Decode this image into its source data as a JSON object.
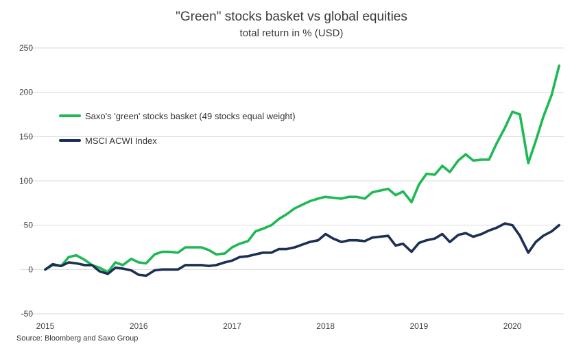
{
  "chart_data": {
    "type": "line",
    "title": "\"Green\" stocks basket vs global equities",
    "subtitle": "total return in % (USD)",
    "xlabel": "",
    "ylabel": "",
    "xlim": [
      2015.0,
      2020.55
    ],
    "ylim": [
      -50,
      250
    ],
    "y_ticks": [
      -50,
      0,
      50,
      100,
      150,
      200,
      250
    ],
    "x_ticks": [
      "2015",
      "2016",
      "2017",
      "2018",
      "2019",
      "2020"
    ],
    "x_tick_values": [
      2015,
      2016,
      2017,
      2018,
      2019,
      2020
    ],
    "grid": true,
    "legend_position": "left",
    "source": "Source: Bloomberg and Saxo Group",
    "series": [
      {
        "name": "Saxo's 'green' stocks basket (49 stocks equal weight)",
        "color": "#1db954",
        "x": [
          2015.0,
          2015.08,
          2015.17,
          2015.25,
          2015.33,
          2015.42,
          2015.5,
          2015.58,
          2015.67,
          2015.75,
          2015.83,
          2015.92,
          2016.0,
          2016.08,
          2016.17,
          2016.25,
          2016.33,
          2016.42,
          2016.5,
          2016.58,
          2016.67,
          2016.75,
          2016.83,
          2016.92,
          2017.0,
          2017.08,
          2017.17,
          2017.25,
          2017.33,
          2017.42,
          2017.5,
          2017.58,
          2017.67,
          2017.75,
          2017.83,
          2017.92,
          2018.0,
          2018.08,
          2018.17,
          2018.25,
          2018.33,
          2018.42,
          2018.5,
          2018.58,
          2018.67,
          2018.75,
          2018.83,
          2018.92,
          2019.0,
          2019.08,
          2019.17,
          2019.25,
          2019.33,
          2019.42,
          2019.5,
          2019.58,
          2019.67,
          2019.75,
          2019.83,
          2019.92,
          2020.0,
          2020.08,
          2020.17,
          2020.25,
          2020.33,
          2020.42,
          2020.5
        ],
        "values": [
          0,
          5,
          4,
          14,
          16,
          11,
          5,
          2,
          -3,
          8,
          5,
          12,
          8,
          7,
          17,
          20,
          20,
          19,
          25,
          25,
          25,
          22,
          17,
          18,
          25,
          29,
          32,
          43,
          46,
          50,
          57,
          62,
          69,
          73,
          77,
          80,
          82,
          81,
          80,
          82,
          82,
          80,
          87,
          89,
          91,
          84,
          88,
          76,
          96,
          108,
          107,
          117,
          110,
          123,
          130,
          123,
          124,
          124,
          142,
          160,
          178,
          175,
          120,
          145,
          172,
          197,
          230
        ]
      },
      {
        "name": "MSCI ACWI Index",
        "color": "#1c2f55",
        "x": [
          2015.0,
          2015.08,
          2015.17,
          2015.25,
          2015.33,
          2015.42,
          2015.5,
          2015.58,
          2015.67,
          2015.75,
          2015.83,
          2015.92,
          2016.0,
          2016.08,
          2016.17,
          2016.25,
          2016.33,
          2016.42,
          2016.5,
          2016.58,
          2016.67,
          2016.75,
          2016.83,
          2016.92,
          2017.0,
          2017.08,
          2017.17,
          2017.25,
          2017.33,
          2017.42,
          2017.5,
          2017.58,
          2017.67,
          2017.75,
          2017.83,
          2017.92,
          2018.0,
          2018.08,
          2018.17,
          2018.25,
          2018.33,
          2018.42,
          2018.5,
          2018.58,
          2018.67,
          2018.75,
          2018.83,
          2018.92,
          2019.0,
          2019.08,
          2019.17,
          2019.25,
          2019.33,
          2019.42,
          2019.5,
          2019.58,
          2019.67,
          2019.75,
          2019.83,
          2019.92,
          2020.0,
          2020.08,
          2020.17,
          2020.25,
          2020.33,
          2020.42,
          2020.5
        ],
        "values": [
          0,
          6,
          4,
          8,
          7,
          5,
          5,
          -2,
          -5,
          2,
          1,
          -1,
          -6,
          -7,
          -1,
          0,
          0,
          0,
          5,
          5,
          5,
          4,
          5,
          8,
          10,
          14,
          15,
          17,
          19,
          19,
          23,
          23,
          25,
          28,
          31,
          33,
          40,
          35,
          31,
          33,
          33,
          32,
          36,
          37,
          38,
          27,
          29,
          20,
          30,
          33,
          35,
          40,
          31,
          39,
          41,
          37,
          40,
          44,
          47,
          52,
          50,
          38,
          19,
          31,
          38,
          43,
          50
        ]
      }
    ]
  }
}
